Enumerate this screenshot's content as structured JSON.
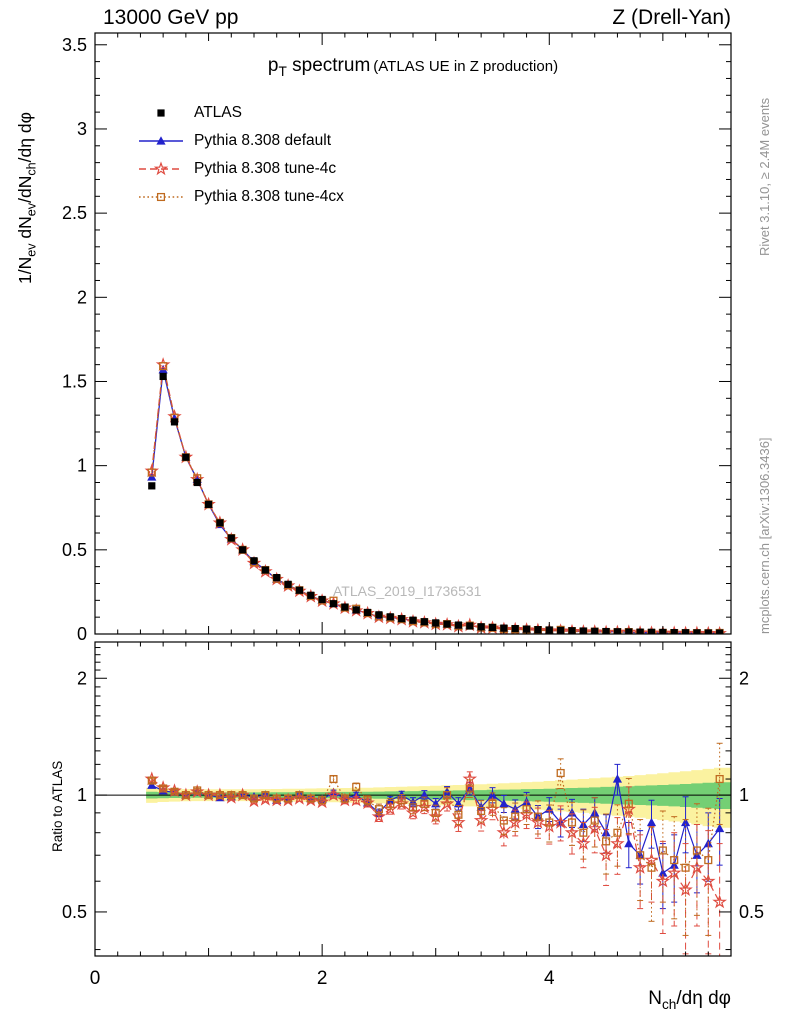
{
  "header": {
    "left": "13000 GeV pp",
    "right": "Z (Drell-Yan)"
  },
  "plot_title": {
    "lead": "p",
    "sub": "T",
    "rest": " spectrum",
    "paren": "(ATLAS UE in Z production)"
  },
  "watermark": "ATLAS_2019_I1736531",
  "side_notes": {
    "top_right": "Rivet 3.1.10, ≥ 2.4M events",
    "bottom_right": "mcplots.cern.ch [arXiv:1306.3436]"
  },
  "axes": {
    "x": {
      "parts": [
        {
          "t": "N"
        },
        {
          "t": "ch",
          "sub": true
        },
        {
          "t": "/dη dφ"
        }
      ],
      "tick_values": [
        0,
        2,
        4
      ],
      "tick_labels": [
        "0",
        "2",
        "4"
      ]
    },
    "y_main": {
      "parts": [
        {
          "t": "1/N"
        },
        {
          "t": "ev",
          "sub": true
        },
        {
          "t": " dN"
        },
        {
          "t": "ev",
          "sub": true
        },
        {
          "t": "/dN"
        },
        {
          "t": "ch",
          "sub": true
        },
        {
          "t": "/dη dφ"
        }
      ],
      "tick_values": [
        0,
        0.5,
        1,
        1.5,
        2,
        2.5,
        3,
        3.5
      ],
      "tick_labels": [
        "0",
        "0.5",
        "1",
        "1.5",
        "2",
        "2.5",
        "3",
        "3.5"
      ]
    },
    "y_ratio": {
      "label": "Ratio to ATLAS",
      "tick_values": [
        0.5,
        1,
        2
      ],
      "tick_labels": [
        "0.5",
        "1",
        "2"
      ]
    }
  },
  "chart_data": {
    "type": "scatter",
    "title": "p_T spectrum (ATLAS UE in Z production)",
    "xlabel": "N_ch/dη dφ",
    "ylabel": "1/N_ev dN_ev/dN_ch/dη dφ",
    "ratio_ylabel": "Ratio to ATLAS",
    "xlim": [
      0,
      5.6
    ],
    "ylim": [
      0,
      3.57
    ],
    "ratio_ylim": [
      0.385,
      2.48
    ],
    "ratio_scale": "log",
    "bin_width": 0.1,
    "x": [
      0.5,
      0.6,
      0.7,
      0.8,
      0.9,
      1.0,
      1.1,
      1.2,
      1.3,
      1.4,
      1.5,
      1.6,
      1.7,
      1.8,
      1.9,
      2.0,
      2.1,
      2.2,
      2.3,
      2.4,
      2.5,
      2.6,
      2.7,
      2.8,
      2.9,
      3.0,
      3.1,
      3.2,
      3.3,
      3.4,
      3.5,
      3.6,
      3.7,
      3.8,
      3.9,
      4.0,
      4.1,
      4.2,
      4.3,
      4.4,
      4.5,
      4.6,
      4.7,
      4.8,
      4.9,
      5.0,
      5.1,
      5.2,
      5.3,
      5.4,
      5.5
    ],
    "series": [
      {
        "label": "ATLAS",
        "marker": "square-filled",
        "color": "#000000",
        "line": "none",
        "values": [
          0.88,
          1.53,
          1.26,
          1.05,
          0.9,
          0.77,
          0.66,
          0.57,
          0.5,
          0.435,
          0.38,
          0.335,
          0.295,
          0.26,
          0.23,
          0.205,
          0.18,
          0.16,
          0.143,
          0.128,
          0.114,
          0.102,
          0.091,
          0.082,
          0.073,
          0.066,
          0.059,
          0.053,
          0.048,
          0.043,
          0.039,
          0.035,
          0.032,
          0.029,
          0.026,
          0.024,
          0.0215,
          0.0195,
          0.0177,
          0.016,
          0.0146,
          0.0133,
          0.0121,
          0.011,
          0.01,
          0.0091,
          0.0083,
          0.0076,
          0.0069,
          0.0063,
          0.0057
        ]
      },
      {
        "label": "Pythia 8.308 default",
        "marker": "triangle-filled",
        "color": "#2222cc",
        "line": "solid",
        "ratio": [
          1.06,
          1.026,
          1.016,
          1.0,
          1.02,
          1.0,
          0.985,
          0.99,
          1.0,
          0.99,
          1.0,
          0.97,
          0.98,
          1.0,
          0.98,
          0.975,
          1.015,
          0.98,
          1.0,
          0.955,
          0.9,
          0.97,
          1.0,
          0.96,
          1.0,
          0.95,
          1.02,
          0.95,
          1.04,
          0.93,
          1.0,
          0.95,
          0.92,
          0.96,
          0.88,
          0.92,
          0.85,
          0.9,
          0.84,
          0.9,
          0.8,
          1.1,
          0.75,
          0.7,
          0.85,
          0.63,
          0.66,
          0.85,
          0.7,
          0.75,
          0.82
        ],
        "ratio_err": [
          0.01,
          0.008,
          0.008,
          0.008,
          0.008,
          0.008,
          0.009,
          0.009,
          0.01,
          0.01,
          0.01,
          0.011,
          0.012,
          0.012,
          0.013,
          0.014,
          0.015,
          0.016,
          0.017,
          0.018,
          0.02,
          0.021,
          0.023,
          0.025,
          0.027,
          0.03,
          0.032,
          0.035,
          0.038,
          0.04,
          0.045,
          0.048,
          0.052,
          0.056,
          0.06,
          0.065,
          0.07,
          0.075,
          0.08,
          0.085,
          0.09,
          0.1,
          0.1,
          0.11,
          0.12,
          0.12,
          0.13,
          0.14,
          0.14,
          0.15,
          0.16
        ]
      },
      {
        "label": "Pythia 8.308 tune-4c",
        "marker": "star-open",
        "color": "#df4b40",
        "line": "dash",
        "ratio": [
          1.1,
          1.045,
          1.025,
          1.0,
          1.02,
          1.0,
          1.0,
          0.985,
          1.0,
          0.965,
          0.975,
          0.97,
          0.97,
          0.98,
          0.97,
          0.96,
          1.0,
          0.97,
          0.97,
          0.955,
          0.88,
          0.92,
          0.95,
          0.9,
          0.93,
          0.88,
          0.95,
          0.85,
          1.1,
          0.86,
          0.92,
          0.8,
          0.85,
          0.89,
          0.85,
          0.83,
          0.85,
          0.8,
          0.75,
          0.82,
          0.7,
          0.75,
          0.92,
          0.65,
          0.68,
          0.6,
          0.63,
          0.57,
          0.65,
          0.6,
          0.53
        ],
        "ratio_err": [
          0.013,
          0.01,
          0.01,
          0.01,
          0.01,
          0.01,
          0.011,
          0.011,
          0.012,
          0.012,
          0.013,
          0.014,
          0.015,
          0.015,
          0.016,
          0.017,
          0.019,
          0.02,
          0.021,
          0.023,
          0.025,
          0.027,
          0.029,
          0.031,
          0.034,
          0.037,
          0.04,
          0.044,
          0.048,
          0.052,
          0.056,
          0.06,
          0.065,
          0.07,
          0.076,
          0.082,
          0.088,
          0.095,
          0.1,
          0.11,
          0.115,
          0.125,
          0.13,
          0.14,
          0.15,
          0.16,
          0.17,
          0.18,
          0.19,
          0.21,
          0.22
        ]
      },
      {
        "label": "Pythia 8.308 tune-4cx",
        "marker": "square-open",
        "color": "#bf6a1f",
        "line": "dot",
        "ratio": [
          1.09,
          1.04,
          1.02,
          1.0,
          1.028,
          1.0,
          1.0,
          1.0,
          1.0,
          0.98,
          1.0,
          0.98,
          0.98,
          1.0,
          0.98,
          0.97,
          1.1,
          0.98,
          1.05,
          0.97,
          0.92,
          0.95,
          0.97,
          0.93,
          0.95,
          0.9,
          1.0,
          0.89,
          1.04,
          0.91,
          0.95,
          0.86,
          0.88,
          0.92,
          0.88,
          0.85,
          1.14,
          0.85,
          0.8,
          0.86,
          0.76,
          0.8,
          0.95,
          0.7,
          0.65,
          0.72,
          0.68,
          0.65,
          0.72,
          0.68,
          1.1
        ],
        "ratio_err": [
          0.015,
          0.011,
          0.011,
          0.011,
          0.011,
          0.011,
          0.012,
          0.012,
          0.013,
          0.013,
          0.014,
          0.015,
          0.016,
          0.017,
          0.018,
          0.019,
          0.021,
          0.022,
          0.024,
          0.026,
          0.028,
          0.03,
          0.033,
          0.035,
          0.038,
          0.042,
          0.045,
          0.05,
          0.054,
          0.058,
          0.063,
          0.068,
          0.074,
          0.08,
          0.086,
          0.093,
          0.1,
          0.108,
          0.116,
          0.125,
          0.134,
          0.144,
          0.154,
          0.165,
          0.177,
          0.19,
          0.2,
          0.215,
          0.23,
          0.245,
          0.26
        ]
      }
    ],
    "bands": {
      "yellow": {
        "color": "#fbf2a0",
        "half_width": [
          0.045,
          0.04,
          0.038,
          0.036,
          0.035,
          0.035,
          0.035,
          0.035,
          0.035,
          0.035,
          0.036,
          0.037,
          0.038,
          0.039,
          0.04,
          0.041,
          0.042,
          0.043,
          0.044,
          0.045,
          0.047,
          0.049,
          0.051,
          0.053,
          0.055,
          0.057,
          0.06,
          0.062,
          0.065,
          0.067,
          0.07,
          0.073,
          0.076,
          0.08,
          0.083,
          0.087,
          0.092,
          0.096,
          0.1,
          0.105,
          0.11,
          0.115,
          0.12,
          0.126,
          0.132,
          0.138,
          0.145,
          0.152,
          0.16,
          0.168,
          0.176
        ]
      },
      "green": {
        "color": "#74cf74",
        "half_width": [
          0.02,
          0.018,
          0.017,
          0.016,
          0.016,
          0.016,
          0.016,
          0.016,
          0.016,
          0.016,
          0.016,
          0.017,
          0.017,
          0.018,
          0.018,
          0.018,
          0.019,
          0.019,
          0.02,
          0.02,
          0.021,
          0.022,
          0.023,
          0.024,
          0.025,
          0.026,
          0.027,
          0.028,
          0.029,
          0.03,
          0.032,
          0.033,
          0.034,
          0.036,
          0.037,
          0.039,
          0.041,
          0.043,
          0.045,
          0.047,
          0.05,
          0.052,
          0.054,
          0.057,
          0.059,
          0.062,
          0.065,
          0.068,
          0.072,
          0.076,
          0.079
        ]
      }
    }
  }
}
